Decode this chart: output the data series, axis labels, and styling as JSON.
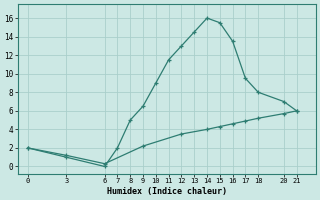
{
  "xlabel": "Humidex (Indice chaleur)",
  "background_color": "#cce8e4",
  "grid_color": "#aacfcb",
  "line_color": "#2e7d72",
  "line1_x": [
    0,
    3,
    6,
    7,
    8,
    9,
    10,
    11,
    12,
    13,
    14,
    15,
    16,
    17,
    18,
    20,
    21
  ],
  "line1_y": [
    2,
    1,
    0,
    2,
    5,
    6.5,
    9,
    11.5,
    13,
    14.5,
    16,
    15.5,
    13.5,
    9.5,
    8,
    7,
    6
  ],
  "line2_x": [
    0,
    3,
    6,
    9,
    12,
    14,
    15,
    16,
    17,
    18,
    20,
    21
  ],
  "line2_y": [
    2,
    1.2,
    0.3,
    2.2,
    3.5,
    4.0,
    4.3,
    4.6,
    4.9,
    5.2,
    5.7,
    6.0
  ],
  "xticks": [
    0,
    3,
    6,
    7,
    8,
    9,
    10,
    11,
    12,
    13,
    14,
    15,
    16,
    17,
    18,
    20,
    21
  ],
  "yticks": [
    0,
    2,
    4,
    6,
    8,
    10,
    12,
    14,
    16
  ],
  "ylim": [
    -0.8,
    17.5
  ],
  "xlim": [
    -0.8,
    22.5
  ]
}
